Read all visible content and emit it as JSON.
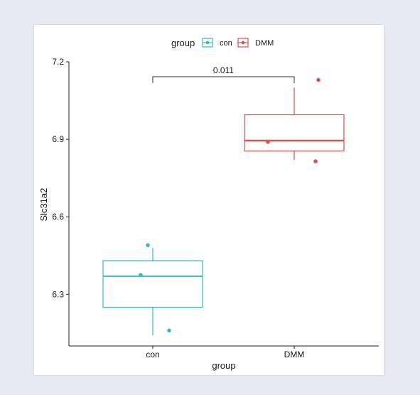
{
  "chart_data": {
    "type": "box",
    "title": "",
    "xlabel": "group",
    "ylabel": "Slc31a2",
    "ylim": [
      6.1,
      7.2
    ],
    "yticks": [
      "6.3",
      "6.6",
      "6.9",
      "7.2"
    ],
    "categories": [
      "con",
      "DMM"
    ],
    "legend": {
      "title": "group",
      "position": "top"
    },
    "series": [
      {
        "name": "con",
        "color": "#3bb8c4",
        "box": {
          "whisker_low": 6.14,
          "q1": 6.25,
          "median": 6.37,
          "q3": 6.43,
          "whisker_high": 6.48
        },
        "points": [
          6.49,
          6.375,
          6.16
        ]
      },
      {
        "name": "DMM",
        "color": "#d9514a",
        "box": {
          "whisker_low": 6.82,
          "q1": 6.855,
          "median": 6.895,
          "q3": 6.995,
          "whisker_high": 7.1
        },
        "points": [
          7.13,
          6.89,
          6.815
        ]
      }
    ],
    "annotations": [
      {
        "type": "significance_bracket",
        "between": [
          "con",
          "DMM"
        ],
        "label": "0.011"
      }
    ]
  }
}
